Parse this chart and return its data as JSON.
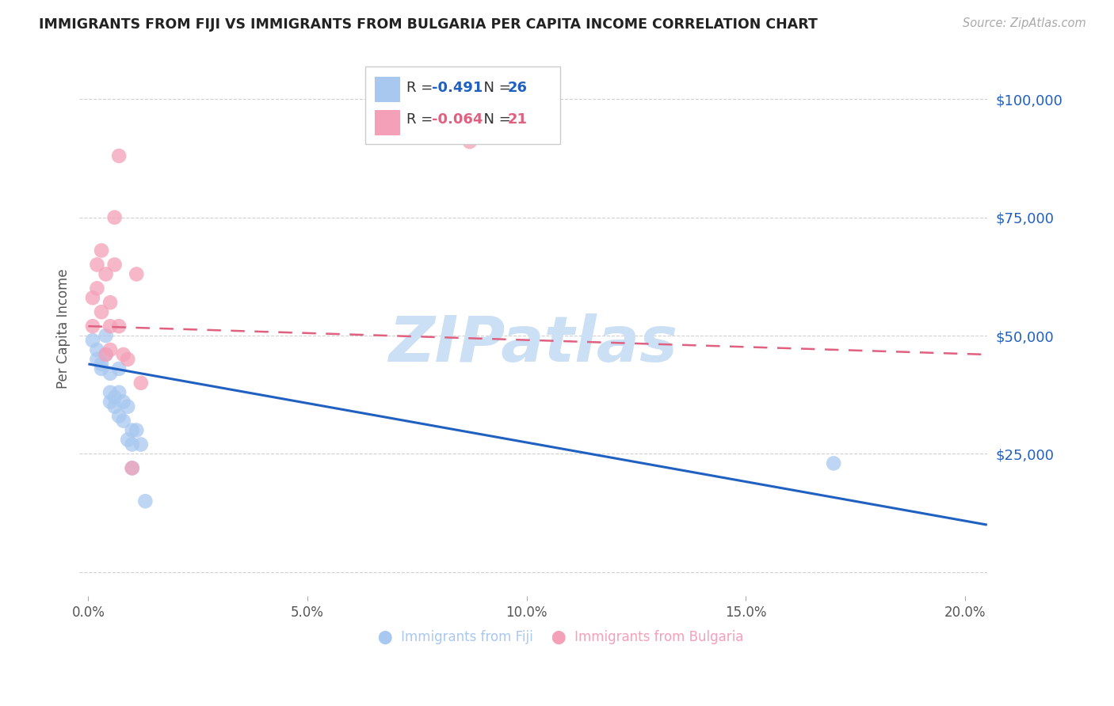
{
  "title": "IMMIGRANTS FROM FIJI VS IMMIGRANTS FROM BULGARIA PER CAPITA INCOME CORRELATION CHART",
  "source": "Source: ZipAtlas.com",
  "ylabel": "Per Capita Income",
  "xlabel_ticks": [
    "0.0%",
    "5.0%",
    "10.0%",
    "15.0%",
    "20.0%"
  ],
  "xlabel_vals": [
    0.0,
    0.05,
    0.1,
    0.15,
    0.2
  ],
  "yticks": [
    0,
    25000,
    50000,
    75000,
    100000
  ],
  "ytick_labels": [
    "",
    "$25,000",
    "$50,000",
    "$75,000",
    "$100,000"
  ],
  "ylim": [
    -5000,
    108000
  ],
  "xlim": [
    -0.002,
    0.205
  ],
  "fiji_R": "-0.491",
  "fiji_N": "26",
  "bulgaria_R": "-0.064",
  "bulgaria_N": "21",
  "fiji_color": "#a8c8f0",
  "bulgaria_color": "#f4a0b8",
  "fiji_line_color": "#2060c0",
  "bulgaria_line_color": "#e06080",
  "fiji_x": [
    0.001,
    0.002,
    0.002,
    0.003,
    0.003,
    0.004,
    0.004,
    0.005,
    0.005,
    0.005,
    0.006,
    0.006,
    0.007,
    0.007,
    0.007,
    0.008,
    0.008,
    0.009,
    0.009,
    0.01,
    0.01,
    0.01,
    0.011,
    0.012,
    0.013,
    0.17
  ],
  "fiji_y": [
    49000,
    47000,
    45000,
    44000,
    43000,
    50000,
    46000,
    42000,
    38000,
    36000,
    37000,
    35000,
    43000,
    38000,
    33000,
    36000,
    32000,
    35000,
    28000,
    30000,
    27000,
    22000,
    30000,
    27000,
    15000,
    23000
  ],
  "bulgaria_x": [
    0.001,
    0.001,
    0.002,
    0.002,
    0.003,
    0.003,
    0.004,
    0.004,
    0.005,
    0.005,
    0.005,
    0.006,
    0.006,
    0.007,
    0.007,
    0.008,
    0.009,
    0.01,
    0.011,
    0.012,
    0.087
  ],
  "bulgaria_y": [
    52000,
    58000,
    60000,
    65000,
    55000,
    68000,
    63000,
    46000,
    52000,
    47000,
    57000,
    75000,
    65000,
    88000,
    52000,
    46000,
    45000,
    22000,
    63000,
    40000,
    91000
  ],
  "fiji_line_x": [
    0.0,
    0.205
  ],
  "fiji_line_y": [
    44000,
    10000
  ],
  "bulgaria_line_x": [
    0.0,
    0.205
  ],
  "bulgaria_line_y": [
    52000,
    46000
  ],
  "background_color": "#ffffff",
  "grid_color": "#d0d0d0",
  "title_color": "#222222",
  "watermark": "ZIPatlas",
  "watermark_color": "#cce0f5"
}
